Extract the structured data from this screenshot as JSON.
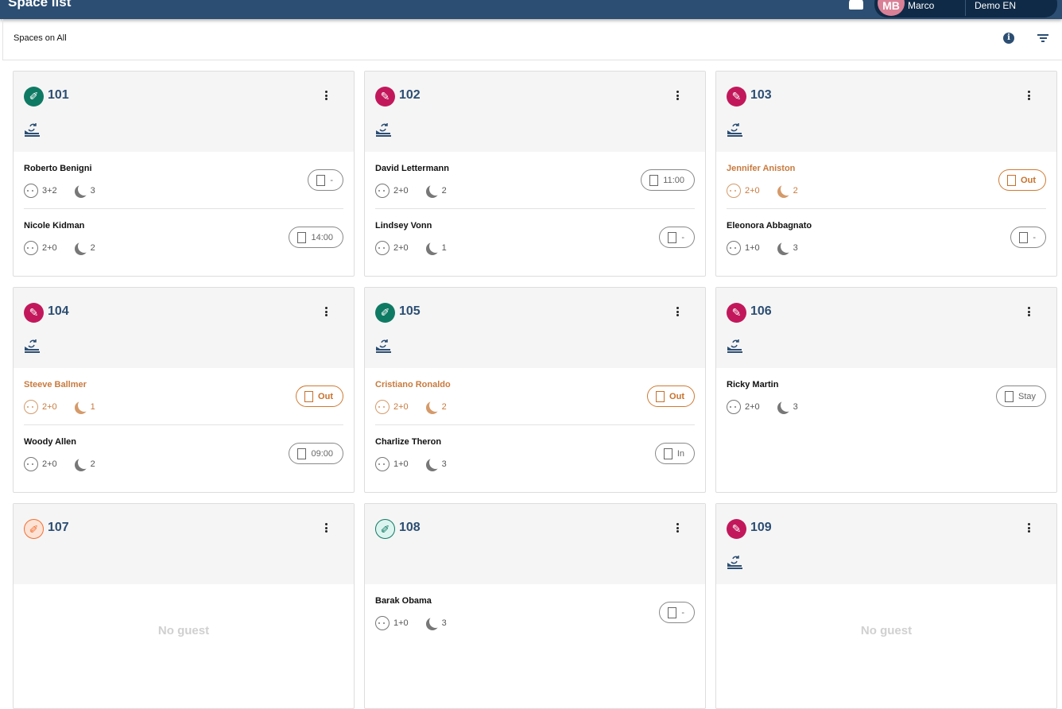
{
  "header": {
    "title": "Space list",
    "user_initials": "MB",
    "user_name": "Marco",
    "property": "Demo EN"
  },
  "subheader": {
    "label": "Spaces on All"
  },
  "colors": {
    "clean": "#0f7a64",
    "dirty": "#c2185b",
    "inspect": "#f36f32",
    "checked": "#0f7a64",
    "primary": "#2c4e73",
    "highlight": "#c87a3d"
  },
  "empty_label": "No guest",
  "spaces": [
    {
      "number": "101",
      "status": "clean",
      "bed_icon": true,
      "guests": [
        {
          "name": "Roberto Benigni",
          "pax": "3+2",
          "nights": "3",
          "action": "departure",
          "label": "-",
          "highlight": false
        },
        {
          "name": "Nicole Kidman",
          "pax": "2+0",
          "nights": "2",
          "action": "arrival",
          "label": "14:00",
          "highlight": false
        }
      ]
    },
    {
      "number": "102",
      "status": "dirty",
      "bed_icon": true,
      "guests": [
        {
          "name": "David Lettermann",
          "pax": "2+0",
          "nights": "2",
          "action": "departure",
          "label": "11:00",
          "highlight": false
        },
        {
          "name": "Lindsey Vonn",
          "pax": "2+0",
          "nights": "1",
          "action": "arrival",
          "label": "-",
          "highlight": false
        }
      ]
    },
    {
      "number": "103",
      "status": "dirty",
      "bed_icon": true,
      "guests": [
        {
          "name": "Jennifer Aniston",
          "pax": "2+0",
          "nights": "2",
          "action": "departure",
          "label": "Out",
          "highlight": true
        },
        {
          "name": "Eleonora Abbagnato",
          "pax": "1+0",
          "nights": "3",
          "action": "arrival",
          "label": "-",
          "highlight": false
        }
      ]
    },
    {
      "number": "104",
      "status": "dirty",
      "bed_icon": true,
      "guests": [
        {
          "name": "Steeve Ballmer",
          "pax": "2+0",
          "nights": "1",
          "action": "departure",
          "label": "Out",
          "highlight": true
        },
        {
          "name": "Woody Allen",
          "pax": "2+0",
          "nights": "2",
          "action": "arrival",
          "label": "09:00",
          "highlight": false
        }
      ]
    },
    {
      "number": "105",
      "status": "clean",
      "bed_icon": true,
      "guests": [
        {
          "name": "Cristiano Ronaldo",
          "pax": "2+0",
          "nights": "2",
          "action": "departure",
          "label": "Out",
          "highlight": true
        },
        {
          "name": "Charlize Theron",
          "pax": "1+0",
          "nights": "3",
          "action": "arrival",
          "label": "In",
          "highlight": false
        }
      ]
    },
    {
      "number": "106",
      "status": "dirty",
      "bed_icon": true,
      "guests": [
        {
          "name": "Ricky Martin",
          "pax": "2+0",
          "nights": "3",
          "action": "stay",
          "label": "Stay",
          "highlight": false
        }
      ]
    },
    {
      "number": "107",
      "status": "inspect",
      "bed_icon": false,
      "guests": []
    },
    {
      "number": "108",
      "status": "checked",
      "bed_icon": false,
      "guests": [
        {
          "name": "Barak Obama",
          "pax": "1+0",
          "nights": "3",
          "action": "arrival",
          "label": "-",
          "highlight": false
        }
      ]
    },
    {
      "number": "109",
      "status": "dirty",
      "bed_icon": true,
      "guests": []
    }
  ]
}
